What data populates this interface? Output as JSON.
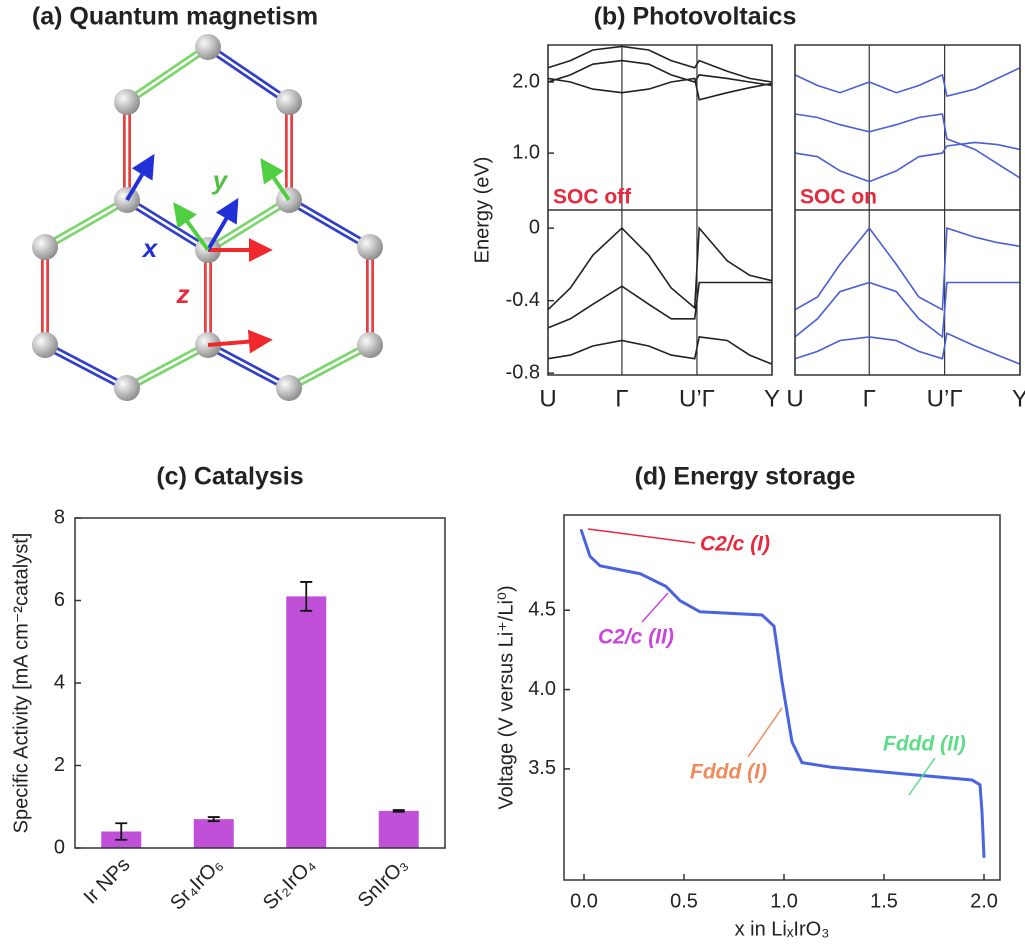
{
  "chart_data": [
    {
      "type": "diagram",
      "title": "(a)  Quantum magnetism",
      "labels": [
        "x",
        "y",
        "z"
      ]
    },
    {
      "type": "line",
      "title": "(b)  Photovoltaics",
      "ylabel": "Energy (eV)",
      "annotation": "SOC off",
      "color": "#222222",
      "x": [
        0,
        0.1,
        0.2,
        0.33,
        0.45,
        0.55,
        0.655,
        0.675,
        0.8,
        0.9,
        1.0
      ],
      "xlim": [
        0,
        1
      ],
      "xticks": [
        {
          "value": 0,
          "label": "U"
        },
        {
          "value": 0.33,
          "label": "Γ"
        },
        {
          "value": 0.665,
          "label": "U’Γ"
        },
        {
          "value": 1,
          "label": "Y"
        }
      ],
      "ylim": [
        -0.81,
        0.1
      ],
      "yticks": [
        -0.8,
        -0.4,
        0
      ],
      "y2lim": [
        0.2,
        2.52
      ],
      "y2ticks": [
        {
          "value": 1,
          "label": "1.0"
        },
        {
          "value": 2,
          "label": "2.0"
        }
      ],
      "grid": true,
      "series": [
        {
          "values": [
            -0.45,
            -0.33,
            -0.15,
            0,
            -0.15,
            -0.33,
            -0.44,
            0,
            -0.18,
            -0.26,
            -0.29
          ]
        },
        {
          "values": [
            -0.55,
            -0.5,
            -0.42,
            -0.32,
            -0.42,
            -0.5,
            -0.5,
            -0.3,
            -0.3,
            -0.3,
            -0.3
          ]
        },
        {
          "values": [
            -0.72,
            -0.7,
            -0.65,
            -0.62,
            -0.65,
            -0.7,
            -0.72,
            -0.6,
            -0.62,
            -0.7,
            -0.75
          ]
        },
        {
          "axis": "y2",
          "values": [
            2.05,
            2.0,
            1.9,
            1.85,
            1.9,
            2.0,
            2.05,
            1.75,
            1.85,
            1.92,
            1.98
          ]
        },
        {
          "axis": "y2",
          "values": [
            2.0,
            2.1,
            2.25,
            2.3,
            2.25,
            2.1,
            2.0,
            2.1,
            2.05,
            2.0,
            1.95
          ]
        },
        {
          "axis": "y2",
          "values": [
            2.2,
            2.3,
            2.45,
            2.5,
            2.45,
            2.3,
            2.2,
            2.3,
            2.15,
            2.05,
            2.0
          ]
        }
      ]
    },
    {
      "type": "line",
      "annotation": "SOC on",
      "color": "#4a5fd4",
      "x": [
        0,
        0.1,
        0.2,
        0.33,
        0.45,
        0.55,
        0.655,
        0.675,
        0.8,
        0.9,
        1.0
      ],
      "xlim": [
        0,
        1
      ],
      "xticks": [
        {
          "value": 0,
          "label": "U"
        },
        {
          "value": 0.33,
          "label": "Γ"
        },
        {
          "value": 0.665,
          "label": "U’Γ"
        },
        {
          "value": 1,
          "label": "Y"
        }
      ],
      "ylim": [
        -0.81,
        0.1
      ],
      "y2lim": [
        0.2,
        2.52
      ],
      "grid": true,
      "series": [
        {
          "values": [
            -0.45,
            -0.38,
            -0.2,
            0,
            -0.2,
            -0.38,
            -0.45,
            0,
            -0.05,
            -0.08,
            -0.1
          ]
        },
        {
          "values": [
            -0.6,
            -0.5,
            -0.35,
            -0.3,
            -0.35,
            -0.5,
            -0.6,
            -0.3,
            -0.3,
            -0.3,
            -0.3
          ]
        },
        {
          "values": [
            -0.72,
            -0.68,
            -0.62,
            -0.6,
            -0.62,
            -0.68,
            -0.72,
            -0.58,
            -0.65,
            -0.7,
            -0.75
          ]
        },
        {
          "axis": "y2",
          "values": [
            1.0,
            0.95,
            0.75,
            0.6,
            0.75,
            0.95,
            1.0,
            1.1,
            1.15,
            1.12,
            1.05
          ]
        },
        {
          "axis": "y2",
          "values": [
            1.55,
            1.5,
            1.4,
            1.3,
            1.4,
            1.5,
            1.55,
            1.2,
            1.05,
            0.85,
            0.65
          ]
        },
        {
          "axis": "y2",
          "values": [
            2.1,
            1.95,
            1.85,
            2.0,
            1.85,
            1.95,
            2.1,
            1.8,
            1.9,
            2.05,
            2.2
          ]
        }
      ]
    },
    {
      "type": "bar",
      "title": "(c)  Catalysis",
      "ylabel": "Specific Activity [mA cm⁻²catalyst]",
      "color": "#c050d8",
      "categories": [
        "Ir NPs",
        "Sr₄IrO₆",
        "Sr₂IrO₄",
        "SnIrO₃"
      ],
      "values": [
        0.4,
        0.7,
        6.1,
        0.9
      ],
      "errors": [
        0.2,
        0.05,
        0.35,
        0.02
      ],
      "ylim": [
        0,
        8
      ],
      "yticks": [
        0,
        2,
        4,
        6,
        8
      ]
    },
    {
      "type": "line",
      "title": "(d)  Energy storage",
      "ylabel": "Voltage (V versus Li⁺/Li⁰)",
      "xlabel": "x in LiₓIrO₃",
      "color": "#4a63e0",
      "x": [
        -0.015,
        0.03,
        0.08,
        0.28,
        0.41,
        0.48,
        0.58,
        0.89,
        0.95,
        0.99,
        1.04,
        1.09,
        1.24,
        1.59,
        1.94,
        1.98,
        1.99,
        2.0
      ],
      "values": [
        5.01,
        4.84,
        4.78,
        4.73,
        4.65,
        4.56,
        4.49,
        4.47,
        4.4,
        4.05,
        3.67,
        3.54,
        3.51,
        3.47,
        3.43,
        3.4,
        3.23,
        2.94
      ],
      "xlim": [
        -0.1,
        2.08
      ],
      "xticks": [
        {
          "value": 0,
          "label": "0.0"
        },
        0.5,
        {
          "value": 1,
          "label": "1.0"
        },
        1.5,
        {
          "value": 2,
          "label": "2.0"
        }
      ],
      "ylim": [
        2.8,
        5.1
      ],
      "yticks": [
        3.5,
        {
          "value": 4,
          "label": "4.0"
        },
        4.5
      ],
      "annotations": [
        {
          "text": "C2/c (I)",
          "color": "#e8283c"
        },
        {
          "text": "C2/c (II)",
          "color": "#cc44dd"
        },
        {
          "text": "Fddd (I)",
          "color": "#f08a5a"
        },
        {
          "text": "Fddd (II)",
          "color": "#5ddc8a"
        }
      ]
    }
  ]
}
